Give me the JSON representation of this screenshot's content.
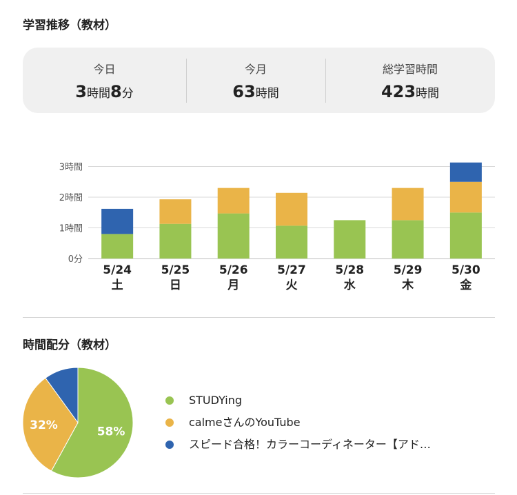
{
  "section1_title": "学習推移（教材）",
  "summary": [
    {
      "label": "今日",
      "parts": [
        {
          "t": "3",
          "n": true
        },
        {
          "t": "時間",
          "n": false
        },
        {
          "t": "8",
          "n": true
        },
        {
          "t": "分",
          "n": false
        }
      ]
    },
    {
      "label": "今月",
      "parts": [
        {
          "t": "63",
          "n": true
        },
        {
          "t": "時間",
          "n": false
        }
      ]
    },
    {
      "label": "総学習時間",
      "parts": [
        {
          "t": "423",
          "n": true
        },
        {
          "t": "時間",
          "n": false
        }
      ]
    }
  ],
  "colors": {
    "green": "#99c452",
    "orange": "#eab448",
    "blue": "#2f64af"
  },
  "section2_title": "時間配分（教材）",
  "chart_data": [
    {
      "type": "bar",
      "stacked": true,
      "categories": [
        "5/24",
        "5/25",
        "5/26",
        "5/27",
        "5/28",
        "5/29",
        "5/30"
      ],
      "weekday_labels": [
        "土",
        "日",
        "月",
        "火",
        "水",
        "木",
        "金"
      ],
      "series": [
        {
          "name": "STUDYing",
          "color": "#99c452",
          "values": [
            0.8,
            1.13,
            1.47,
            1.07,
            1.25,
            1.25,
            1.5
          ]
        },
        {
          "name": "calmeさんのYouTube",
          "color": "#eab448",
          "values": [
            0,
            0.8,
            0.83,
            1.07,
            0,
            1.05,
            1.0
          ]
        },
        {
          "name": "スピード合格！カラーコーディネーター【アド…",
          "color": "#2f64af",
          "values": [
            0.82,
            0,
            0,
            0,
            0,
            0,
            0.63
          ]
        }
      ],
      "yticks": [
        {
          "v": 0,
          "label": "0分"
        },
        {
          "v": 1,
          "label": "1時間"
        },
        {
          "v": 2,
          "label": "2時間"
        },
        {
          "v": 3,
          "label": "3時間"
        }
      ],
      "ylim": [
        0,
        3.3
      ],
      "grid": true
    },
    {
      "type": "pie",
      "slices": [
        {
          "name": "STUDYing",
          "value": 58,
          "label": "58%",
          "color": "#99c452"
        },
        {
          "name": "calmeさんのYouTube",
          "value": 32,
          "label": "32%",
          "color": "#eab448"
        },
        {
          "name": "スピード合格！カラーコーディネーター【アド…",
          "value": 10,
          "label": "",
          "color": "#2f64af"
        }
      ]
    }
  ]
}
